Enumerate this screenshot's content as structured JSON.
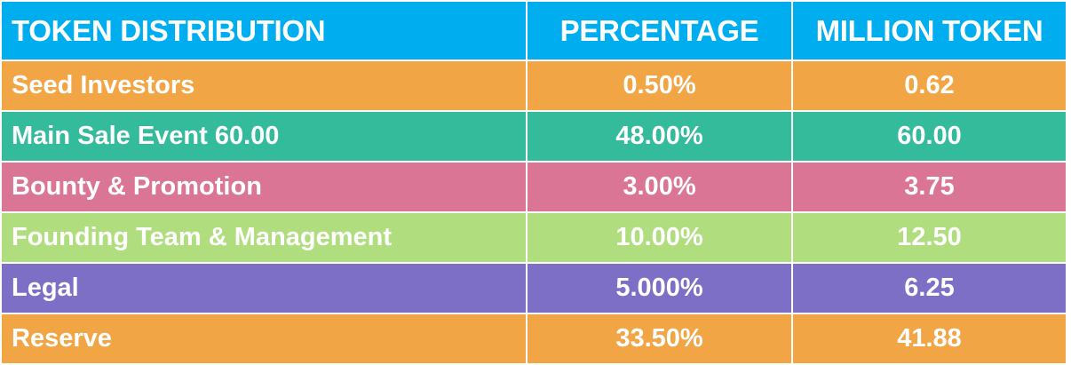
{
  "colors": {
    "header": "#00ADEF",
    "seed": "#F2A545",
    "main_sale": "#34BB9C",
    "bounty": "#DB7596",
    "founding": "#B0DE7F",
    "legal": "#7C6FC5",
    "reserve": "#F2A545"
  },
  "chart_data": {
    "type": "table",
    "columns": [
      "TOKEN DISTRIBUTION",
      "PERCENTAGE",
      "MILLION TOKEN"
    ],
    "rows": [
      [
        "Seed Investors",
        "0.50%",
        "0.62"
      ],
      [
        "Main Sale Event 60.00",
        "48.00%",
        "60.00"
      ],
      [
        "Bounty & Promotion",
        "3.00%",
        "3.75"
      ],
      [
        "Founding Team & Management",
        "10.00%",
        "12.50"
      ],
      [
        "Legal",
        "5.000%",
        "6.25"
      ],
      [
        "Reserve",
        "33.50%",
        "41.88"
      ]
    ]
  }
}
